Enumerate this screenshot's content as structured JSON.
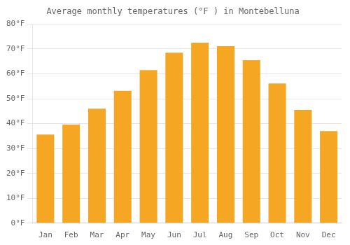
{
  "chart_data": {
    "type": "bar",
    "title": "Average monthly temperatures (°F ) in Montebelluna",
    "categories": [
      "Jan",
      "Feb",
      "Mar",
      "Apr",
      "May",
      "Jun",
      "Jul",
      "Aug",
      "Sep",
      "Oct",
      "Nov",
      "Dec"
    ],
    "values": [
      35.6,
      39.6,
      46.0,
      53.2,
      61.5,
      68.5,
      72.5,
      71.1,
      65.5,
      56.1,
      45.5,
      37.0
    ],
    "color": "#F5A623",
    "ylim": [
      0,
      80
    ],
    "yticks": [
      {
        "value": 0,
        "label": "0°F"
      },
      {
        "value": 10,
        "label": "10°F"
      },
      {
        "value": 20,
        "label": "20°F"
      },
      {
        "value": 30,
        "label": "30°F"
      },
      {
        "value": 40,
        "label": "40°F"
      },
      {
        "value": 50,
        "label": "50°F"
      },
      {
        "value": 60,
        "label": "60°F"
      },
      {
        "value": 70,
        "label": "70°F"
      },
      {
        "value": 80,
        "label": "80°F"
      }
    ],
    "grid": true
  }
}
